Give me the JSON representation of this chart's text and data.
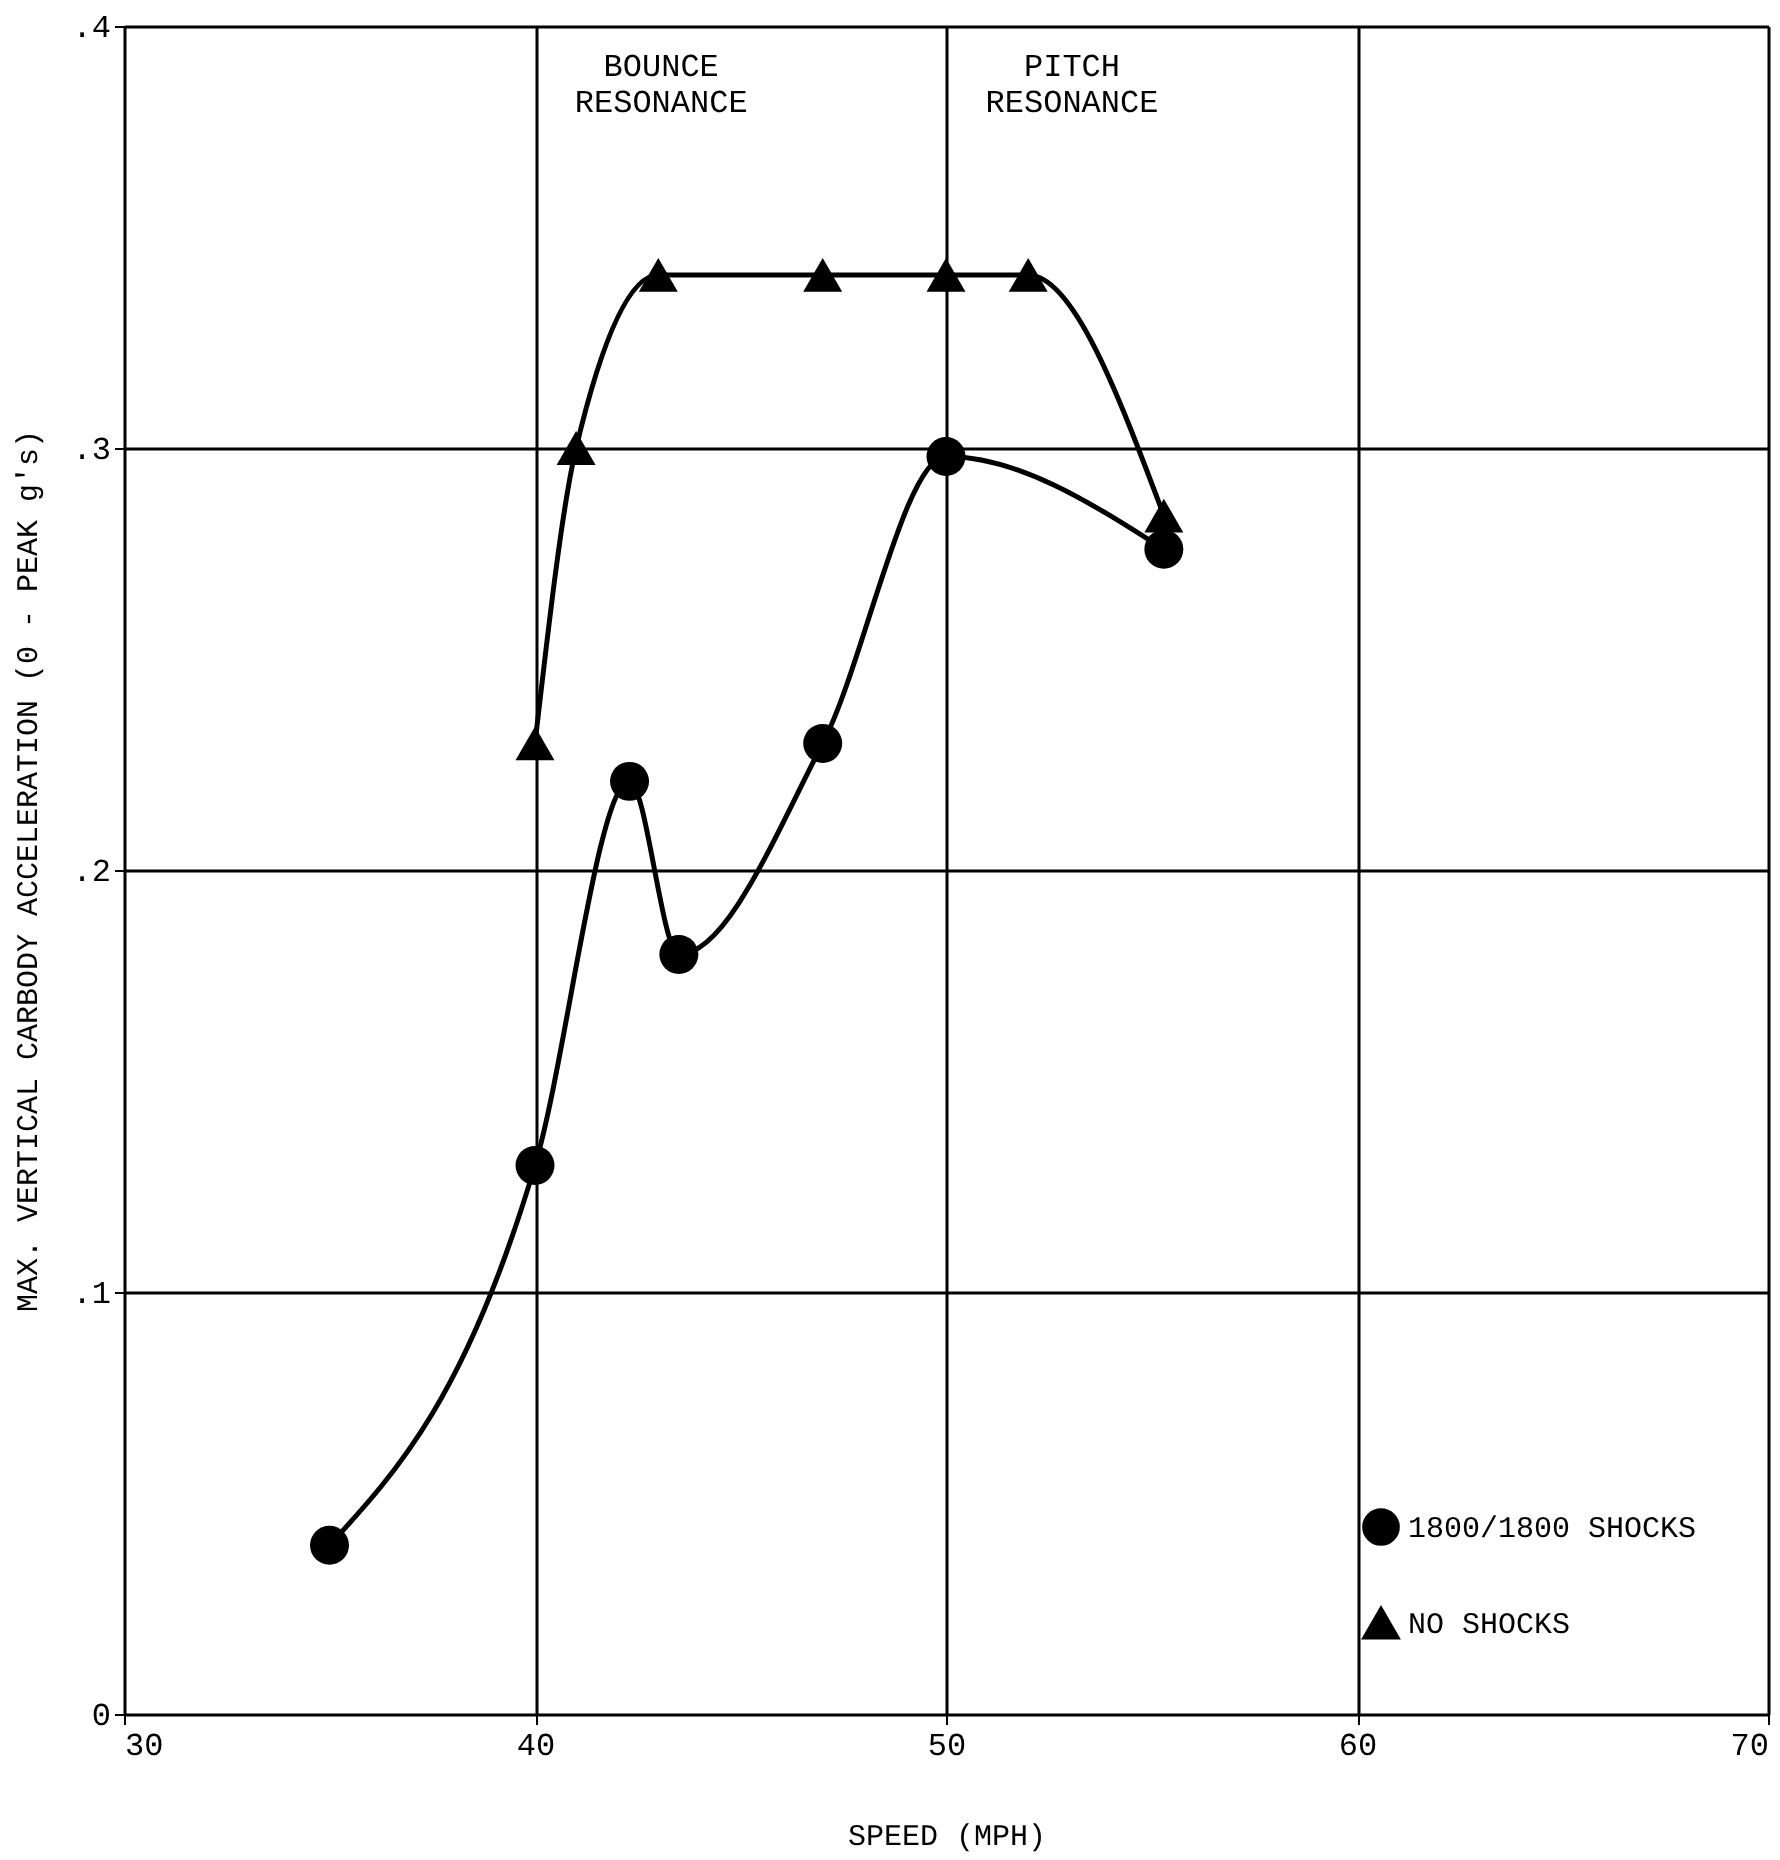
{
  "chart_data": {
    "type": "line",
    "xlabel": "SPEED (MPH)",
    "ylabel": "MAX. VERTICAL CARBODY ACCELERATION  (0 - PEAK g's)",
    "xlim": [
      30,
      70
    ],
    "xticks": [
      30,
      40,
      50,
      60,
      70
    ],
    "ylim": [
      0,
      0.4
    ],
    "yticks": [
      0,
      {
        "value": 0.1,
        "label": ".1"
      },
      {
        "value": 0.2,
        "label": ".2"
      },
      {
        "value": 0.3,
        "label": ".3"
      },
      {
        "value": 0.4,
        "label": ".4"
      }
    ],
    "grid": true,
    "legend": "bottom right",
    "series": [
      {
        "name": "1800/1800 SHOCKS",
        "color": "#000000",
        "marker": "circle",
        "x": [
          35,
          40,
          42.3,
          43.5,
          47,
          50,
          55.3
        ],
        "values": [
          0.04,
          0.13,
          0.221,
          0.18,
          0.23,
          0.298,
          0.276
        ]
      },
      {
        "name": "NO SHOCKS",
        "color": "#000000",
        "marker": "triangle",
        "x": [
          40,
          41,
          43,
          47,
          50,
          52,
          55.3
        ],
        "values": [
          0.23,
          0.3,
          0.341,
          0.341,
          0.341,
          0.341,
          0.284
        ]
      }
    ],
    "annotations": [
      "BOUNCE\nRESONANCE",
      "PITCH\nRESONANCE"
    ]
  }
}
